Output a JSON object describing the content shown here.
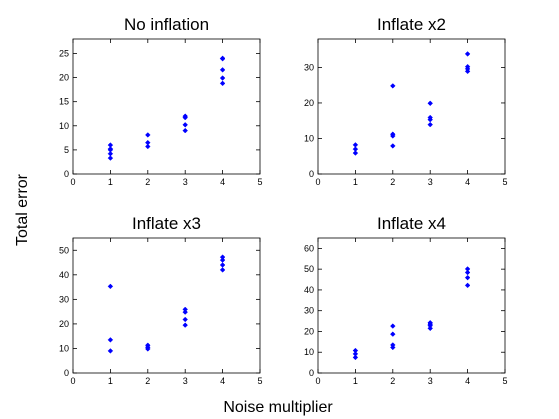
{
  "figure": {
    "xlabel": "Noise multiplier",
    "ylabel": "Total error",
    "marker_color": "#0000ff"
  },
  "chart_data": [
    {
      "type": "scatter",
      "title": "No inflation",
      "xlim": [
        0,
        5
      ],
      "ylim": [
        0,
        28
      ],
      "xticks": [
        "0",
        "1",
        "2",
        "3",
        "4",
        "5"
      ],
      "yticks": [
        "0",
        "5",
        "10",
        "15",
        "20",
        "25"
      ],
      "x": [
        1,
        1,
        1,
        1,
        1,
        2,
        2,
        2,
        3,
        3,
        3,
        3,
        4,
        4,
        4,
        4,
        4
      ],
      "y": [
        3.3,
        4.2,
        5.0,
        5.2,
        6.0,
        5.7,
        6.5,
        8.1,
        9.0,
        10.2,
        11.7,
        12.0,
        18.8,
        19.9,
        21.6,
        23.9,
        24.0
      ]
    },
    {
      "type": "scatter",
      "title": "Inflate x2",
      "xlim": [
        0,
        5
      ],
      "ylim": [
        0,
        38
      ],
      "xticks": [
        "0",
        "1",
        "2",
        "3",
        "4",
        "5"
      ],
      "yticks": [
        "0",
        "10",
        "20",
        "30"
      ],
      "x": [
        1,
        1,
        1,
        2,
        2,
        2,
        2,
        3,
        3,
        3,
        3,
        4,
        4,
        4,
        4
      ],
      "y": [
        5.9,
        7.0,
        8.2,
        7.9,
        10.7,
        11.2,
        24.8,
        13.9,
        15.3,
        15.9,
        19.9,
        28.9,
        29.6,
        30.2,
        33.8
      ]
    },
    {
      "type": "scatter",
      "title": "Inflate x3",
      "xlim": [
        0,
        5
      ],
      "ylim": [
        0,
        55
      ],
      "xticks": [
        "0",
        "1",
        "2",
        "3",
        "4",
        "5"
      ],
      "yticks": [
        "0",
        "10",
        "20",
        "30",
        "40",
        "50"
      ],
      "x": [
        1,
        1,
        1,
        2,
        2,
        2,
        3,
        3,
        3,
        3,
        4,
        4,
        4,
        4
      ],
      "y": [
        9.0,
        13.5,
        35.3,
        9.8,
        10.5,
        11.3,
        19.5,
        21.8,
        24.8,
        25.9,
        42.0,
        44.0,
        46.0,
        47.2
      ]
    },
    {
      "type": "scatter",
      "title": "Inflate x4",
      "xlim": [
        0,
        5
      ],
      "ylim": [
        0,
        65
      ],
      "xticks": [
        "0",
        "1",
        "2",
        "3",
        "4",
        "5"
      ],
      "yticks": [
        "0",
        "10",
        "20",
        "30",
        "40",
        "50",
        "60"
      ],
      "x": [
        1,
        1,
        1,
        2,
        2,
        2,
        2,
        3,
        3,
        3,
        3,
        4,
        4,
        4,
        4
      ],
      "y": [
        7.5,
        9.2,
        10.8,
        12.3,
        13.5,
        18.7,
        22.6,
        21.5,
        22.8,
        23.5,
        24.2,
        42.2,
        45.9,
        48.4,
        50.1
      ]
    }
  ]
}
